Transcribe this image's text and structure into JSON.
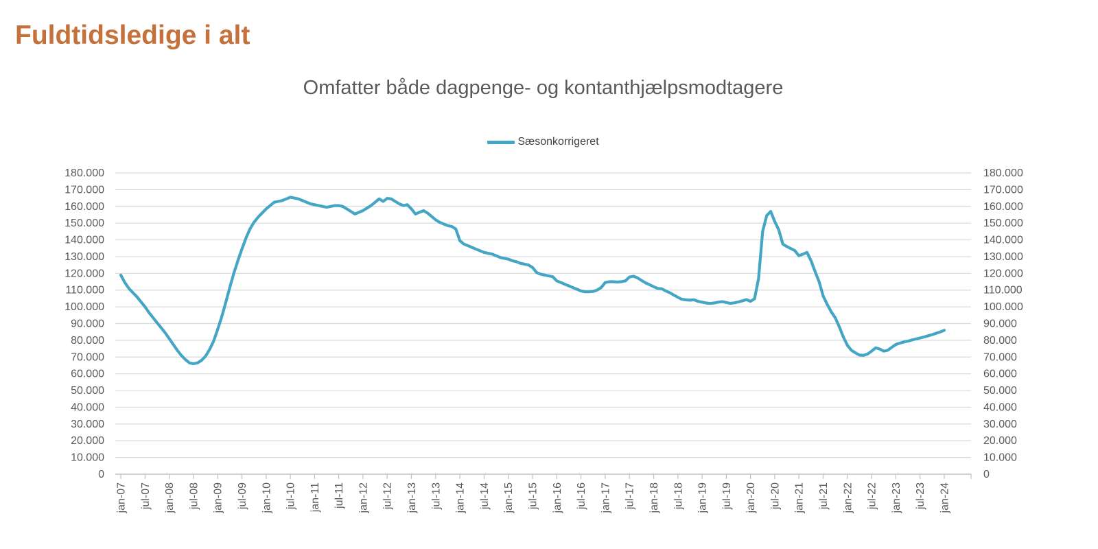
{
  "page": {
    "title": "Fuldtidsledige i alt"
  },
  "colors": {
    "title": "#c4713b",
    "chart_title": "#595959",
    "axis_label": "#595959",
    "gridline": "#d9d9d9",
    "axis_line": "#bfbfbf",
    "series_line": "#44a5c4"
  },
  "chart_data": {
    "type": "line",
    "title": "Omfatter både dagpenge- og kontanthjælpsmodtagere",
    "legend_position": "top-center",
    "grid": true,
    "ylim": [
      0,
      180000
    ],
    "y_tick_step": 10000,
    "y_tick_labels": [
      "0",
      "10.000",
      "20.000",
      "30.000",
      "40.000",
      "50.000",
      "60.000",
      "70.000",
      "80.000",
      "90.000",
      "100.000",
      "110.000",
      "120.000",
      "130.000",
      "140.000",
      "150.000",
      "160.000",
      "170.000",
      "180.000"
    ],
    "x_tick_labels": [
      "jan-07",
      "jul-07",
      "jan-08",
      "jul-08",
      "jan-09",
      "jul-09",
      "jan-10",
      "jul-10",
      "jan-11",
      "jul-11",
      "jan-12",
      "jul-12",
      "jan-13",
      "jul-13",
      "jan-14",
      "jul-14",
      "jan-15",
      "jul-15",
      "jan-16",
      "jul-16",
      "jan-17",
      "jul-17",
      "jan-18",
      "jul-18",
      "jan-19",
      "jul-19",
      "jan-20",
      "jul-20",
      "jan-21",
      "jul-21",
      "jan-22",
      "jul-22",
      "jan-23",
      "jul-23",
      "jan-24"
    ],
    "x_unit": "month",
    "series": [
      {
        "name": "Sæsonkorrigeret",
        "color": "#44a5c4",
        "values": [
          119000,
          114500,
          111000,
          108500,
          106000,
          103000,
          100000,
          96500,
          93500,
          90500,
          87500,
          84500,
          81000,
          77500,
          74000,
          71000,
          68500,
          66500,
          66000,
          66500,
          68000,
          70500,
          74500,
          79500,
          86500,
          94000,
          102500,
          111500,
          120000,
          127500,
          134500,
          141000,
          146500,
          150500,
          153500,
          156000,
          158500,
          160500,
          162500,
          163000,
          163500,
          164500,
          165500,
          165000,
          164500,
          163500,
          162500,
          161500,
          161000,
          160500,
          160000,
          159500,
          160000,
          160500,
          160500,
          160000,
          158500,
          157000,
          155500,
          156500,
          157500,
          159000,
          160500,
          162500,
          164500,
          163000,
          164800,
          164500,
          163000,
          161500,
          160500,
          161000,
          158500,
          155500,
          156500,
          157500,
          156000,
          154000,
          152000,
          150500,
          149500,
          148500,
          148000,
          146500,
          139500,
          137500,
          136500,
          135500,
          134500,
          133500,
          132500,
          132000,
          131500,
          130500,
          129500,
          129000,
          128500,
          127500,
          127000,
          126000,
          125500,
          125000,
          123500,
          120500,
          119500,
          119000,
          118500,
          118000,
          115500,
          114500,
          113500,
          112500,
          111500,
          110500,
          109500,
          109000,
          109000,
          109200,
          110000,
          111500,
          114500,
          115000,
          115000,
          114800,
          115000,
          115500,
          117800,
          118300,
          117300,
          115800,
          114300,
          113200,
          112000,
          111000,
          110800,
          109500,
          108400,
          107000,
          105700,
          104500,
          104200,
          104000,
          104200,
          103300,
          102800,
          102300,
          102000,
          102300,
          102800,
          103100,
          102600,
          102100,
          102400,
          102900,
          103600,
          104300,
          103300,
          104800,
          117000,
          145000,
          154500,
          157000,
          151000,
          146000,
          137500,
          136000,
          134800,
          133500,
          130500,
          131500,
          132500,
          127500,
          121000,
          115000,
          106500,
          101500,
          97000,
          93400,
          88000,
          82000,
          77000,
          74000,
          72500,
          71200,
          71000,
          71800,
          73500,
          75500,
          74800,
          73500,
          74000,
          75800,
          77500,
          78300,
          79000,
          79500,
          80200,
          80800,
          81400,
          82000,
          82700,
          83400,
          84200,
          85000,
          86000
        ]
      }
    ]
  }
}
